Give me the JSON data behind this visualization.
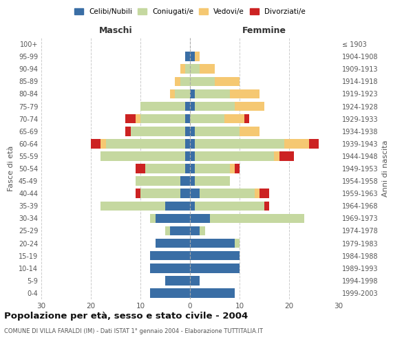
{
  "age_groups": [
    "0-4",
    "5-9",
    "10-14",
    "15-19",
    "20-24",
    "25-29",
    "30-34",
    "35-39",
    "40-44",
    "45-49",
    "50-54",
    "55-59",
    "60-64",
    "65-69",
    "70-74",
    "75-79",
    "80-84",
    "85-89",
    "90-94",
    "95-99",
    "100+"
  ],
  "birth_years": [
    "1999-2003",
    "1994-1998",
    "1989-1993",
    "1984-1988",
    "1979-1983",
    "1974-1978",
    "1969-1973",
    "1964-1968",
    "1959-1963",
    "1954-1958",
    "1949-1953",
    "1944-1948",
    "1939-1943",
    "1934-1938",
    "1929-1933",
    "1924-1928",
    "1919-1923",
    "1914-1918",
    "1909-1913",
    "1904-1908",
    "≤ 1903"
  ],
  "colors": {
    "celibi": "#3a6ea5",
    "coniugati": "#c5d8a0",
    "vedovi": "#f5c872",
    "divorziati": "#cc2222"
  },
  "maschi": {
    "celibi": [
      8,
      5,
      8,
      8,
      7,
      4,
      7,
      5,
      2,
      2,
      1,
      1,
      1,
      1,
      1,
      1,
      0,
      0,
      0,
      1,
      0
    ],
    "coniugati": [
      0,
      0,
      0,
      0,
      0,
      1,
      1,
      13,
      8,
      9,
      8,
      17,
      16,
      11,
      9,
      9,
      3,
      2,
      1,
      0,
      0
    ],
    "vedovi": [
      0,
      0,
      0,
      0,
      0,
      0,
      0,
      0,
      0,
      0,
      0,
      0,
      1,
      0,
      1,
      0,
      1,
      1,
      1,
      0,
      0
    ],
    "divorziati": [
      0,
      0,
      0,
      0,
      0,
      0,
      0,
      0,
      1,
      0,
      2,
      0,
      2,
      1,
      2,
      0,
      0,
      0,
      0,
      0,
      0
    ]
  },
  "femmine": {
    "celibi": [
      9,
      2,
      10,
      10,
      9,
      2,
      4,
      1,
      2,
      1,
      1,
      1,
      1,
      1,
      0,
      1,
      1,
      0,
      0,
      1,
      0
    ],
    "coniugati": [
      0,
      0,
      0,
      0,
      1,
      1,
      19,
      14,
      11,
      7,
      7,
      16,
      18,
      9,
      7,
      8,
      7,
      5,
      2,
      0,
      0
    ],
    "vedovi": [
      0,
      0,
      0,
      0,
      0,
      0,
      0,
      0,
      1,
      0,
      1,
      1,
      5,
      4,
      4,
      6,
      6,
      5,
      3,
      1,
      0
    ],
    "divorziati": [
      0,
      0,
      0,
      0,
      0,
      0,
      0,
      1,
      2,
      0,
      1,
      3,
      2,
      0,
      1,
      0,
      0,
      0,
      0,
      0,
      0
    ]
  },
  "xlim": 30,
  "title": "Popolazione per età, sesso e stato civile - 2004",
  "subtitle": "COMUNE DI VILLA FARALDI (IM) - Dati ISTAT 1° gennaio 2004 - Elaborazione TUTTITALIA.IT",
  "xlabel_left": "Maschi",
  "xlabel_right": "Femmine",
  "ylabel_left": "Fasce di età",
  "ylabel_right": "Anni di nascita",
  "legend_labels": [
    "Celibi/Nubili",
    "Coniugati/e",
    "Vedovi/e",
    "Divorziati/e"
  ]
}
